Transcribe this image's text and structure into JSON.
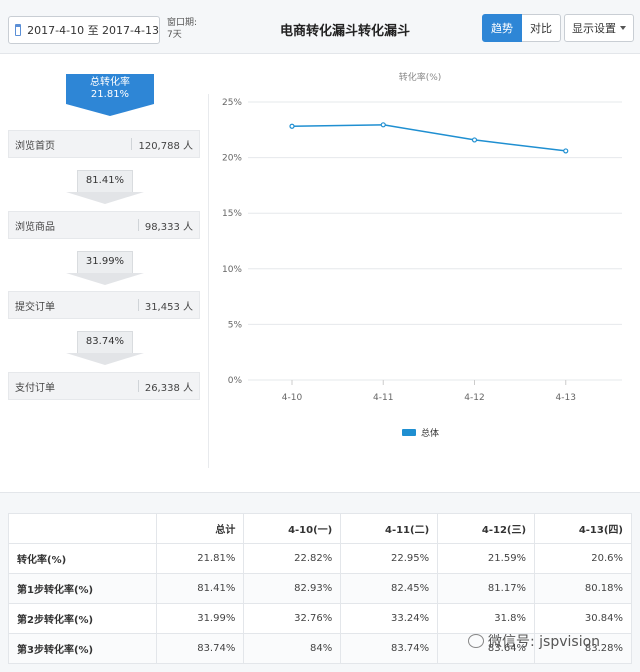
{
  "header": {
    "date_range": "2017-4-10 至 2017-4-13",
    "window_label": "窗口期:",
    "window_value": "7天",
    "title": "电商转化漏斗转化漏斗",
    "toggle_trend": "趋势",
    "toggle_compare": "对比",
    "settings_label": "显示设置"
  },
  "funnel": {
    "total_label": "总转化率",
    "total_value": "21.81%",
    "stages": [
      {
        "name": "浏览首页",
        "value": "120,788 人"
      },
      {
        "name": "浏览商品",
        "value": "98,333 人"
      },
      {
        "name": "提交订单",
        "value": "31,453 人"
      },
      {
        "name": "支付订单",
        "value": "26,338 人"
      }
    ],
    "steps": [
      "81.41%",
      "31.99%",
      "83.74%"
    ]
  },
  "chart_data": {
    "type": "line",
    "title": "转化率(%)",
    "categories": [
      "4-10",
      "4-11",
      "4-12",
      "4-13"
    ],
    "series": [
      {
        "name": "总体",
        "values": [
          22.82,
          22.95,
          21.59,
          20.6
        ],
        "color": "#1f8fd1"
      }
    ],
    "yticks": [
      "0%",
      "5%",
      "10%",
      "15%",
      "20%",
      "25%"
    ],
    "ylim": [
      0,
      25
    ],
    "legend": "bottom-center",
    "grid": true
  },
  "table": {
    "headers": [
      "",
      "总计",
      "4-10(一)",
      "4-11(二)",
      "4-12(三)",
      "4-13(四)"
    ],
    "rows": [
      [
        "转化率(%)",
        "21.81%",
        "22.82%",
        "22.95%",
        "21.59%",
        "20.6%"
      ],
      [
        "第1步转化率(%)",
        "81.41%",
        "82.93%",
        "82.45%",
        "81.17%",
        "80.18%"
      ],
      [
        "第2步转化率(%)",
        "31.99%",
        "32.76%",
        "33.24%",
        "31.8%",
        "30.84%"
      ],
      [
        "第3步转化率(%)",
        "83.74%",
        "84%",
        "83.74%",
        "83.64%",
        "83.28%"
      ]
    ]
  },
  "watermark": "微信号: jspvision"
}
